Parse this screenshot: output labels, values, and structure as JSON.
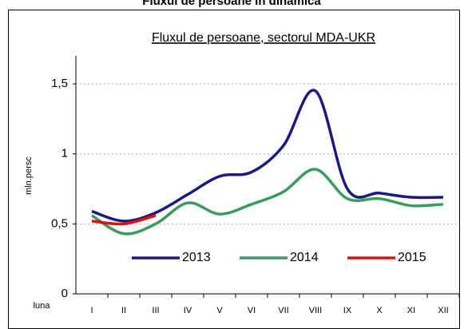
{
  "chart_data": {
    "type": "line",
    "title": "Fluxul de persoane în dinamică",
    "subtitle": "Fluxul de persoane, sectorul MDA-UKR",
    "y_label": "mln.persc",
    "x_label": "luna",
    "categories": [
      "I",
      "II",
      "III",
      "IV",
      "V",
      "VI",
      "VII",
      "VIII",
      "IX",
      "X",
      "XI",
      "XII"
    ],
    "series": [
      {
        "name": "2013",
        "color": "#1a1a80",
        "values": [
          0.59,
          0.52,
          0.58,
          0.71,
          0.84,
          0.87,
          1.06,
          1.45,
          0.75,
          0.72,
          0.69,
          0.69
        ]
      },
      {
        "name": "2014",
        "color": "#3a9a60",
        "values": [
          0.56,
          0.43,
          0.5,
          0.65,
          0.57,
          0.64,
          0.73,
          0.89,
          0.68,
          0.68,
          0.63,
          0.64
        ]
      },
      {
        "name": "2015",
        "color": "#e01010",
        "values": [
          0.52,
          0.5,
          0.56,
          null,
          null,
          null,
          null,
          null,
          null,
          null,
          null,
          null
        ]
      }
    ],
    "ylim": [
      0,
      1.7
    ],
    "yticks": [
      0,
      {
        "value": 0.5,
        "label": "0,5"
      },
      1,
      {
        "value": 1.5,
        "label": "1,5"
      }
    ],
    "grid": true,
    "legend": "lower center"
  }
}
